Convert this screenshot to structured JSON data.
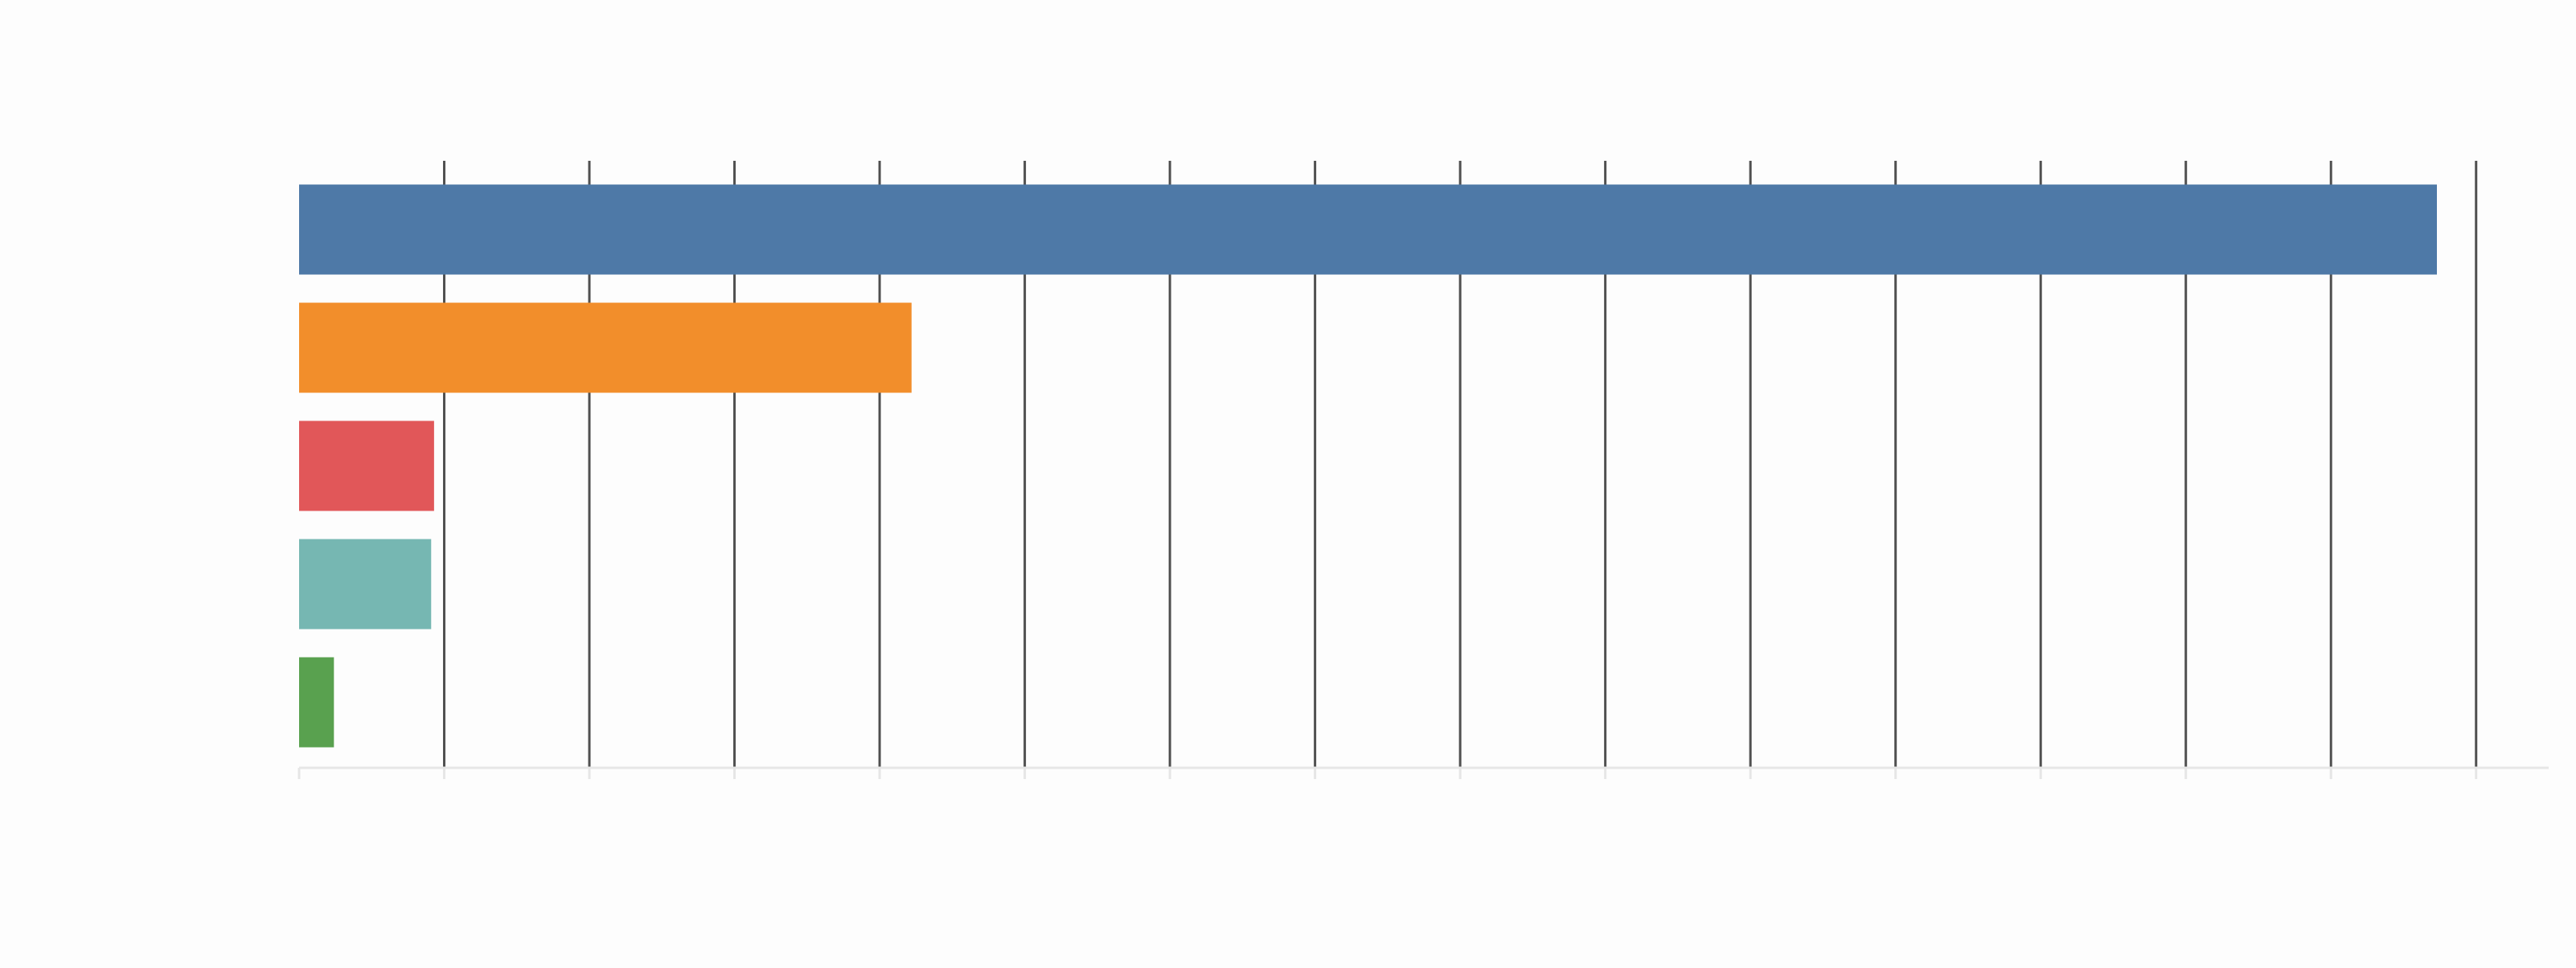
{
  "chart_data": {
    "type": "bar",
    "orientation": "horizontal",
    "categories": [
      "",
      "",
      "",
      "",
      ""
    ],
    "values": [
      14.73,
      4.22,
      0.93,
      0.91,
      0.24
    ],
    "colors": [
      "#4e79a7",
      "#f28e2b",
      "#e15759",
      "#76b7b2",
      "#59a14f"
    ],
    "title": "",
    "xlabel": "",
    "ylabel": "",
    "xlim": [
      0,
      15.5
    ],
    "x_grid_ticks": [
      0,
      1,
      2,
      3,
      4,
      5,
      6,
      7,
      8,
      9,
      10,
      11,
      12,
      13,
      14,
      15
    ],
    "grid": true,
    "legend": "none"
  }
}
